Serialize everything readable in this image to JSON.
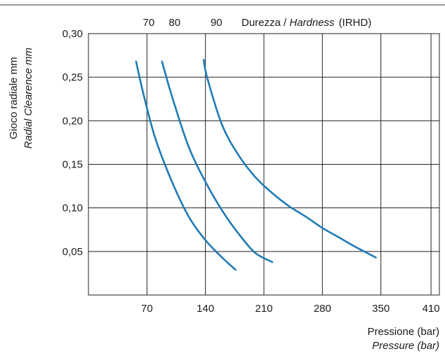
{
  "chart_data": {
    "type": "line",
    "hardness_axis": {
      "ticks": [
        "70",
        "80",
        "90"
      ],
      "label_prefix": "Durezza / ",
      "label_italic": "Hardness",
      "label_suffix": "(IRHD)"
    },
    "ylabel": {
      "line1": "Gioco radiale mm",
      "line2": "Radial Clearence mm"
    },
    "xlabel": {
      "line1": "Pressione (bar)",
      "line2": "Pressure (bar)"
    },
    "x_ticks": [
      70,
      140,
      210,
      280,
      350,
      410
    ],
    "x_tick_labels": [
      "70",
      "140",
      "210",
      "280",
      "350",
      "410"
    ],
    "y_ticks": [
      0.05,
      0.1,
      0.15,
      0.2,
      0.25,
      0.3
    ],
    "y_tick_labels": [
      "0,05",
      "0,10",
      "0,15",
      "0,20",
      "0,25",
      "0,30"
    ],
    "xlim": [
      0,
      420
    ],
    "ylim": [
      0,
      0.3
    ],
    "grid": true,
    "line_color": "#1f7bb6",
    "series": [
      {
        "name": "70",
        "points": [
          [
            57,
            0.268
          ],
          [
            66,
            0.23
          ],
          [
            80,
            0.18
          ],
          [
            100,
            0.13
          ],
          [
            120,
            0.09
          ],
          [
            140,
            0.063
          ],
          [
            160,
            0.043
          ],
          [
            176,
            0.029
          ]
        ]
      },
      {
        "name": "80",
        "points": [
          [
            88,
            0.268
          ],
          [
            100,
            0.228
          ],
          [
            120,
            0.17
          ],
          [
            140,
            0.13
          ],
          [
            160,
            0.097
          ],
          [
            180,
            0.07
          ],
          [
            200,
            0.048
          ],
          [
            220,
            0.038
          ]
        ]
      },
      {
        "name": "90",
        "points": [
          [
            138,
            0.27
          ],
          [
            142,
            0.25
          ],
          [
            160,
            0.195
          ],
          [
            180,
            0.16
          ],
          [
            200,
            0.135
          ],
          [
            220,
            0.117
          ],
          [
            240,
            0.102
          ],
          [
            260,
            0.09
          ],
          [
            280,
            0.077
          ],
          [
            300,
            0.066
          ],
          [
            320,
            0.055
          ],
          [
            344,
            0.043
          ]
        ]
      }
    ]
  }
}
